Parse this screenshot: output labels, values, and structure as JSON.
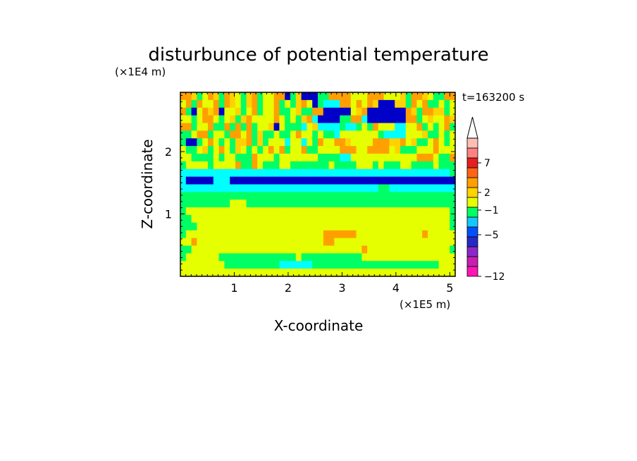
{
  "chart_data": {
    "type": "heatmap",
    "title": "disturbunce of potential temperature",
    "xlabel": "X-coordinate",
    "ylabel": "Z-coordinate",
    "x_unit": "(×1E5 m)",
    "y_unit": "(×1E4 m)",
    "time_label": "t=163200 s",
    "xlim": [
      0,
      5.1
    ],
    "ylim": [
      0,
      2.95
    ],
    "x_ticks": [
      "1",
      "2",
      "3",
      "4",
      "5"
    ],
    "y_ticks": [
      "1",
      "2"
    ],
    "colorbar": {
      "tick_labels": [
        "7",
        "2",
        "−1",
        "−5",
        "−12"
      ],
      "tick_values": [
        7,
        2,
        -1,
        -5,
        -12
      ],
      "colors": [
        "#ff14b4",
        "#c81eb4",
        "#8c28c8",
        "#2828c8",
        "#0050ff",
        "#14c8ff",
        "#00ff64",
        "#e6ff00",
        "#ffd200",
        "#ffa000",
        "#ff6414",
        "#e61e1e",
        "#ff8282",
        "#ffbeb4",
        "#ffffff"
      ]
    },
    "field": {
      "rows_top_to_bottom": [
        "OOXGYOXGOXYGXOGYYOOBGXBBBGGOOOOYYYOOOYYYXGOOXYGGOO",
        "YOGOYYOGOXYGXOGYYOGYGXOYBGCCCOOYOYOXBBBXXGOYOGGYGY",
        "OGBYOXOBYYXGYOGYYOGGYXGGOOBBBBBYXOBBBBBBBOXGOOXXGY",
        "YYGYOOYGYXGXOYYYYOYGYGXOCBBBBGGOOCBBBBBBBOOGYXYYOX",
        "OOGYYOGGOGOGOGYYXBYGGGCYXCCCCGCCGYGOYYYCCYYOGYGYOG",
        "GGYOOGYYGOOYOGXGGYGGYOYYGYGGCYYYYYYYGCCCCYYYXGGYGY",
        "GBBGYOYGYGXXOGXGYYYCYYCYGOYYOOXYYYYOOOXXOYXGGYOYGY",
        "YGGYXGYOYGXYGYGYOYOGYYOGGYYYYOOOYYOOOOYXGGGYYYOYYY",
        "YYGGGGYGYYGGGOYYYGYYYYYYYGGGGCCYYYYYYYYYYYYOOOYGGO",
        "GYYYYGYYYYOGGOYGGGYYGGGGGGGYGGGGYYYGYGGGYYGGGGYGGG",
        "CCCCCCCCCCCCCCCCCCCCCCCCCCCCCCCCCCCCCCCCCCCCCCCCCG",
        "CBBBBBCCCBBBBBBBBBBBBBBBBBBBBBBBBBBBBBBBBBBBBBBBBB",
        "CCCCCCCCCCCCCCCCCCCCCCCCCCCCCCCCCCCCGGCCCCCCCCCCCC",
        "GGGGGGGGGGGGGGGGGGGGGGGGGGGGGGGGGGGGGGGGGGGGGGGGGG",
        "GGGGGGGGGYYYGGGGGGGGGGGGGGGGGGGGGGGGGGGGGGGGGGGGGG",
        "GYYYYYYYYYYYYYYYYYYYYYYYYYYYYYYYYYYYYYYYYYYYYYYYYG",
        "GGYYYYYYYYYYYYYYYYYYYYYYYYYYYYYYYYYYYYYYYYYYYYYYYG",
        "GGGYYYYYYYYYYYYYYYYYYYYYYYYYYYYYYYYYYYYYYYYYYYYYYG",
        "GYYYYYYYYYYYYYYYYYYYYYYYYYOOOOOOYYYYYYYYYYYYOYYYYY",
        "YYOYYYYYYYYYYYYYYYYYYYYYYYOOYYYYYYYYYYYYYYYYYYYYYY",
        "GGYYYYYYYYYYYYYYYYYYYYYYYYYYYYYYYOYYYYYYYYYYYYYYYG",
        "GYYYYYYGGGGGGGGGGGGGGYGGGGGGGGGGGYYYYYYYYYYYYYYYYY",
        "YYYYYYYYGGGGGGGGGGCCCCCCGGGGGGGGGGGGGGGGGGGGGGGYYY",
        "YYYYYYYYYYYYYYYYYYYYYYYYYYYYYYYYYYYYYYYYYYYYYYYYYY"
      ]
    }
  }
}
